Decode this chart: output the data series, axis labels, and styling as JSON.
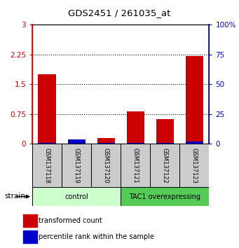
{
  "title": "GDS2451 / 261035_at",
  "samples": [
    "GSM137118",
    "GSM137119",
    "GSM137120",
    "GSM137121",
    "GSM137122",
    "GSM137123"
  ],
  "red_values": [
    1.75,
    0.0,
    0.15,
    0.82,
    0.62,
    2.21
  ],
  "blue_values_pct": [
    1.0,
    4.0,
    1.0,
    1.0,
    0.5,
    2.0
  ],
  "left_ylim": [
    0,
    3
  ],
  "right_ylim": [
    0,
    100
  ],
  "left_yticks": [
    0,
    0.75,
    1.5,
    2.25,
    3
  ],
  "right_yticks": [
    0,
    25,
    50,
    75,
    100
  ],
  "right_yticklabels": [
    "0",
    "25",
    "50",
    "75",
    "100%"
  ],
  "left_yticklabels": [
    "0",
    "0.75",
    "1.5",
    "2.25",
    "3"
  ],
  "groups": [
    {
      "label": "control",
      "indices": [
        0,
        1,
        2
      ],
      "color": "#ccffcc"
    },
    {
      "label": "TAC1 overexpressing",
      "indices": [
        3,
        4,
        5
      ],
      "color": "#55cc55"
    }
  ],
  "red_color": "#cc0000",
  "blue_color": "#0000cc",
  "legend_labels": [
    "transformed count",
    "percentile rank within the sample"
  ],
  "left_axis_color": "#cc0000",
  "right_axis_color": "#0000cc",
  "sample_box_color": "#cccccc",
  "fig_width": 3.41,
  "fig_height": 3.54,
  "dpi": 100
}
